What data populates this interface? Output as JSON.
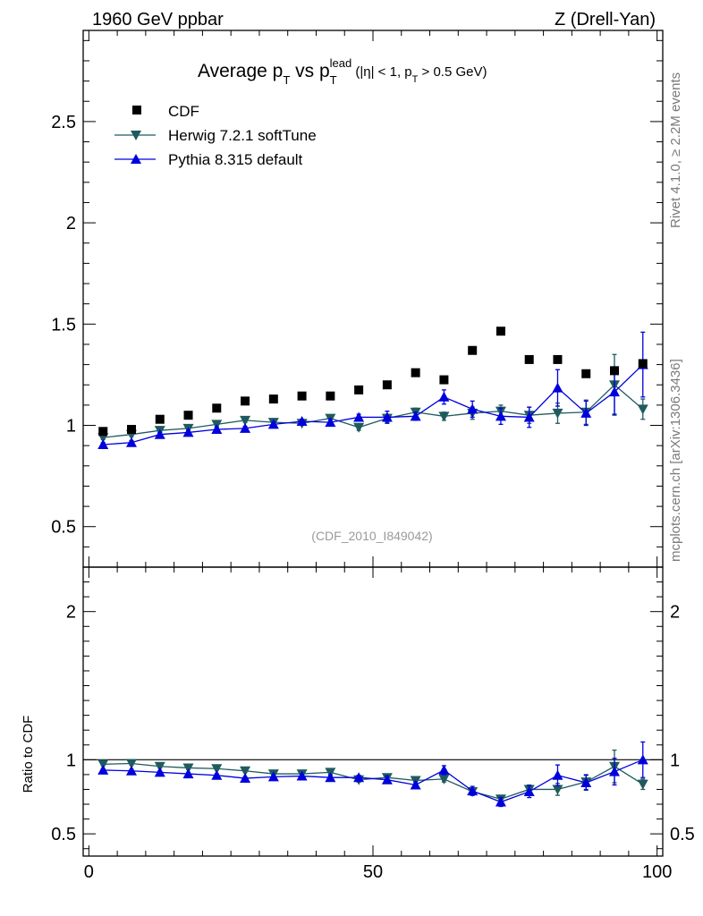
{
  "header": {
    "left": "1960 GeV ppbar",
    "right": "Z (Drell-Yan)"
  },
  "side_labels": {
    "rivet": "Rivet 4.1.0, ≥ 2.2M events",
    "mcplots": "mcplots.cern.ch [arXiv:1306.3436]"
  },
  "colors": {
    "cdf": "#000000",
    "herwig": "#1f5b5e",
    "pythia": "#0000dd"
  },
  "chart_data": {
    "type": "scatter",
    "title": {
      "main": "Average p",
      "sub1": "T",
      "mid": " vs p",
      "sub2": "T",
      "sup": "lead",
      "tail1": " (|η| < 1, p",
      "sub3": "T",
      "tail2": " > 0.5 GeV)"
    },
    "watermark": "(CDF_2010_I849042)",
    "ratio_ylabel": "Ratio to CDF",
    "xlim": [
      -1,
      101
    ],
    "ylim": [
      0.3,
      2.95
    ],
    "ratio_ylim": [
      0.35,
      2.3
    ],
    "x_ticks": [
      0,
      50,
      100
    ],
    "y_ticks": [
      0.5,
      1,
      1.5,
      2,
      2.5
    ],
    "ratio_y_ticks": [
      0.5,
      1,
      2
    ],
    "x": [
      2.5,
      7.5,
      12.5,
      17.5,
      22.5,
      27.5,
      32.5,
      37.5,
      42.5,
      47.5,
      52.5,
      57.5,
      62.5,
      67.5,
      72.5,
      77.5,
      82.5,
      87.5,
      92.5,
      97.5
    ],
    "series": [
      {
        "name": "CDF",
        "marker": "square",
        "values": [
          0.97,
          0.98,
          1.03,
          1.05,
          1.085,
          1.12,
          1.13,
          1.145,
          1.145,
          1.175,
          1.2,
          1.26,
          1.225,
          1.37,
          1.465,
          1.325,
          1.325,
          1.255,
          1.27,
          1.305
        ],
        "errors": [
          0,
          0,
          0,
          0,
          0,
          0,
          0,
          0,
          0,
          0,
          0,
          0,
          0,
          0,
          0,
          0,
          0,
          0,
          0,
          0
        ]
      },
      {
        "name": "Herwig 7.2.1 softTune",
        "marker": "triangle-down",
        "values": [
          0.94,
          0.955,
          0.975,
          0.985,
          1.005,
          1.025,
          1.015,
          1.01,
          1.035,
          0.99,
          1.035,
          1.065,
          1.045,
          1.06,
          1.07,
          1.05,
          1.06,
          1.065,
          1.2,
          1.08
        ],
        "errors": [
          0.01,
          0.01,
          0.01,
          0.01,
          0.01,
          0.01,
          0.01,
          0.01,
          0.015,
          0.015,
          0.02,
          0.02,
          0.02,
          0.03,
          0.03,
          0.04,
          0.05,
          0.06,
          0.15,
          0.05
        ],
        "ratio": [
          0.97,
          0.975,
          0.955,
          0.945,
          0.94,
          0.925,
          0.905,
          0.905,
          0.915,
          0.865,
          0.88,
          0.86,
          0.87,
          0.785,
          0.735,
          0.8,
          0.8,
          0.85,
          0.955,
          0.835
        ],
        "ratio_errors": [
          0.01,
          0.01,
          0.01,
          0.01,
          0.01,
          0.01,
          0.01,
          0.01,
          0.015,
          0.015,
          0.02,
          0.02,
          0.02,
          0.025,
          0.025,
          0.03,
          0.04,
          0.05,
          0.11,
          0.035
        ]
      },
      {
        "name": "Pythia 8.315 default",
        "marker": "triangle-up",
        "values": [
          0.905,
          0.915,
          0.955,
          0.965,
          0.98,
          0.985,
          1.005,
          1.02,
          1.015,
          1.04,
          1.04,
          1.045,
          1.14,
          1.08,
          1.045,
          1.04,
          1.185,
          1.06,
          1.165,
          1.3
        ],
        "errors": [
          0.01,
          0.01,
          0.01,
          0.01,
          0.01,
          0.01,
          0.01,
          0.01,
          0.015,
          0.015,
          0.03,
          0.02,
          0.035,
          0.04,
          0.04,
          0.05,
          0.09,
          0.06,
          0.11,
          0.16
        ],
        "ratio": [
          0.93,
          0.925,
          0.915,
          0.905,
          0.895,
          0.875,
          0.885,
          0.89,
          0.88,
          0.88,
          0.865,
          0.83,
          0.93,
          0.79,
          0.715,
          0.785,
          0.895,
          0.845,
          0.92,
          1.0
        ],
        "ratio_errors": [
          0.01,
          0.01,
          0.01,
          0.01,
          0.01,
          0.01,
          0.01,
          0.01,
          0.015,
          0.015,
          0.025,
          0.02,
          0.03,
          0.03,
          0.03,
          0.04,
          0.07,
          0.05,
          0.09,
          0.12
        ]
      }
    ]
  }
}
